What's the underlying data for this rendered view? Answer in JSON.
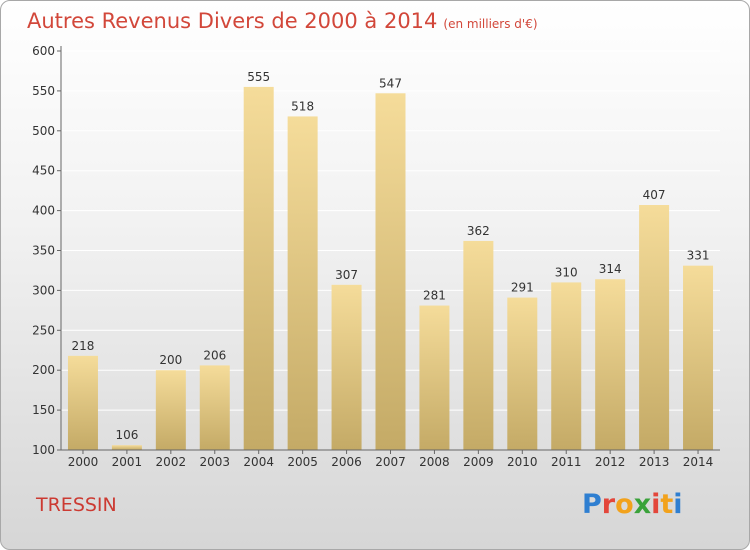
{
  "header": {
    "title": "Autres Revenus Divers de 2000 à 2014",
    "subtitle": "(en milliers d'€)"
  },
  "place": "TRESSIN",
  "logo": {
    "text": "Proxiti",
    "letters": [
      "P",
      "r",
      "o",
      "x",
      "i",
      "t",
      "i"
    ],
    "colors": [
      "#2f7fd1",
      "#e3463b",
      "#f2a21c",
      "#3aa23a",
      "#e3463b",
      "#f2a21c",
      "#2f7fd1"
    ]
  },
  "chart_data": {
    "type": "bar",
    "title": "Autres Revenus Divers de 2000 à 2014",
    "ylabel": "",
    "xlabel": "",
    "ylim": [
      100,
      600
    ],
    "yticks": [
      100,
      150,
      200,
      250,
      300,
      350,
      400,
      450,
      500,
      550,
      600
    ],
    "categories": [
      "2000",
      "2001",
      "2002",
      "2003",
      "2004",
      "2005",
      "2006",
      "2007",
      "2008",
      "2009",
      "2010",
      "2011",
      "2012",
      "2013",
      "2014"
    ],
    "values": [
      218,
      106,
      200,
      206,
      555,
      518,
      307,
      547,
      281,
      362,
      291,
      310,
      314,
      407,
      331
    ],
    "grid": true,
    "colors": {
      "bar_top": "#f5dc9a",
      "bar_bottom": "#c4aa66",
      "grid": "#ffffff",
      "axis": "#666666",
      "text": "#333333"
    }
  }
}
